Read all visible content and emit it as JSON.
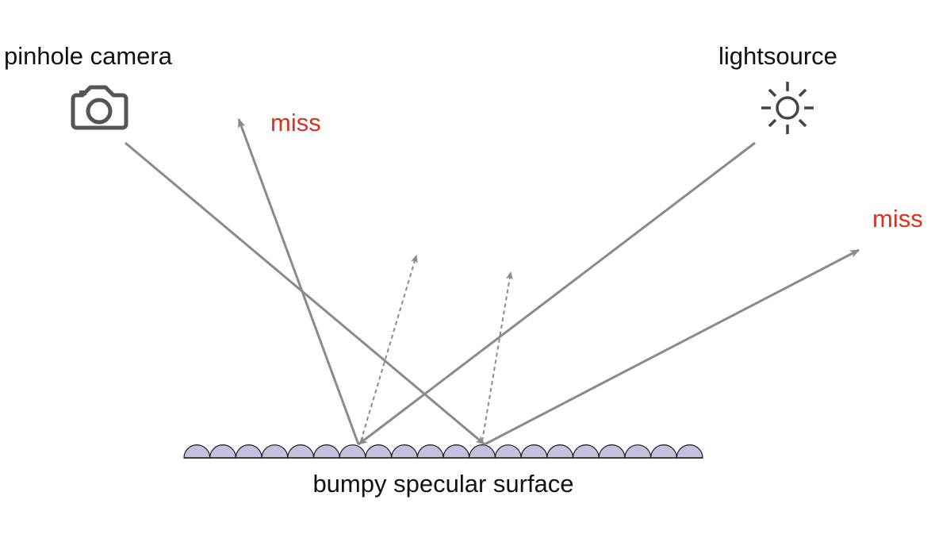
{
  "labels": {
    "camera": "pinhole camera",
    "light": "lightsource",
    "miss_left": "miss",
    "miss_right": "miss",
    "surface": "bumpy specular surface"
  },
  "icons": {
    "camera": "camera-icon",
    "light": "sun-icon"
  },
  "colors": {
    "ray": "#8a8a8e",
    "miss_text": "#d9321f",
    "text": "#111111",
    "bump_fill": "#c6c0df",
    "bump_stroke": "#1a1a1a",
    "icon": "#555555"
  }
}
